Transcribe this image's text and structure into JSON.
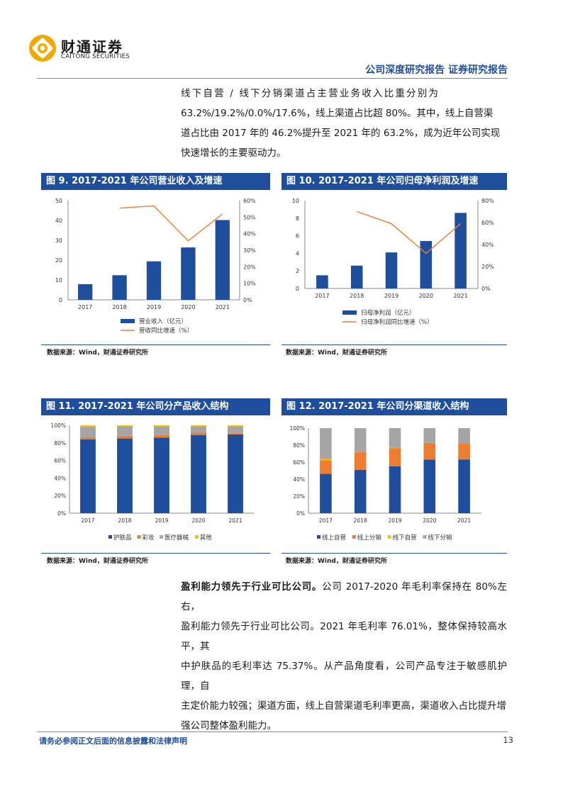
{
  "header": {
    "logo_cn": "财通证券",
    "logo_en": "CAITONG SECURITIES",
    "report_title": "公司深度研究报告 证券研究报告"
  },
  "paragraph1": {
    "lines": [
      "线下自营 / 线下分销渠道占主营业务收入比重分别为",
      "63.2%/19.2%/0.0%/17.6%，线上渠道占比超 80%。其中，线上自营渠",
      "道占比由 2017 年的 46.2%提升至 2021 年的 63.2%，成为近年公司实现",
      "快速增长的主要驱动力。"
    ]
  },
  "paragraph2": {
    "lead": "盈利能力领先于行业可比公司。",
    "first_rest": "公司 2017-2020 年毛利率保持在 80%左右，",
    "lines": [
      "盈利能力领先于行业可比公司。2021 年毛利率 76.01%，整体保持较高水平，其",
      "中护肤品的毛利率达 75.37%。从产品角度看，公司产品专注于敏感肌护理，自",
      "主定价能力较强；渠道方面，线上自营渠道毛利率更高，渠道收入占比提升增",
      "强公司整体盈利能力。"
    ]
  },
  "figures": {
    "fig9": {
      "title": "图 9. 2017-2021 年公司营业收入及增速",
      "source": "数据来源：Wind，财通证券研究所"
    },
    "fig10": {
      "title": "图 10. 2017-2021 年公司归母净利润及增速",
      "source": "数据来源：Wind，财通证券研究所"
    },
    "fig11": {
      "title": "图 11. 2017-2021 年公司分产品收入结构",
      "source": "数据来源：Wind，财通证券研究所"
    },
    "fig12": {
      "title": "图 12. 2017-2021 年公司分渠道收入结构",
      "source": "数据来源：Wind，财通证券研究所"
    }
  },
  "chart_data": [
    {
      "id": "fig9",
      "type": "bar+line",
      "categories": [
        "2017",
        "2018",
        "2019",
        "2020",
        "2021"
      ],
      "series": [
        {
          "name": "营业收入（亿元）",
          "type": "bar",
          "axis": "left",
          "values": [
            7.9,
            12.4,
            19.4,
            26.4,
            40.2
          ]
        },
        {
          "name": "营收同比增速（%）",
          "type": "line",
          "axis": "right",
          "values": [
            null,
            55.4,
            56.8,
            35.7,
            51.9
          ]
        }
      ],
      "ylim_left": [
        0,
        50
      ],
      "yticks_left": [
        "0",
        "10",
        "20",
        "30",
        "40",
        "50"
      ],
      "ylim_right": [
        0,
        60
      ],
      "yticks_right": [
        "0%",
        "10%",
        "20%",
        "30%",
        "40%",
        "50%",
        "60%"
      ],
      "grid": false,
      "legend": "bottom",
      "colors": {
        "bar": "#1f4e9c",
        "line": "#ed7d31"
      }
    },
    {
      "id": "fig10",
      "type": "bar+line",
      "categories": [
        "2017",
        "2018",
        "2019",
        "2020",
        "2021"
      ],
      "series": [
        {
          "name": "归母净利润（亿元）",
          "type": "bar",
          "axis": "left",
          "values": [
            1.5,
            2.6,
            4.1,
            5.4,
            8.6
          ]
        },
        {
          "name": "归母净利润同比增速（%）",
          "type": "line",
          "axis": "right",
          "values": [
            null,
            70.0,
            59.0,
            32.0,
            59.0
          ]
        }
      ],
      "ylim_left": [
        0,
        10
      ],
      "yticks_left": [
        "0",
        "2",
        "4",
        "6",
        "8",
        "10"
      ],
      "ylim_right": [
        0,
        80
      ],
      "yticks_right": [
        "0%",
        "20%",
        "40%",
        "60%",
        "80%"
      ],
      "grid": false,
      "legend": "bottom",
      "colors": {
        "bar": "#1f4e9c",
        "line": "#ed7d31"
      }
    },
    {
      "id": "fig11",
      "type": "stacked-bar",
      "categories": [
        "2017",
        "2018",
        "2019",
        "2020",
        "2021"
      ],
      "series": [
        {
          "name": "护肤品",
          "values": [
            84,
            85,
            86,
            89,
            89.5
          ],
          "color": "#1f4e9c"
        },
        {
          "name": "彩妆",
          "values": [
            2.5,
            3,
            3,
            2.5,
            1.5
          ],
          "color": "#ed7d31"
        },
        {
          "name": "医疗器械",
          "values": [
            12,
            11,
            10,
            7.5,
            8
          ],
          "color": "#a5a5a5"
        },
        {
          "name": "其他",
          "values": [
            1.5,
            1,
            1,
            1,
            1
          ],
          "color": "#ffc000"
        }
      ],
      "ylim": [
        0,
        100
      ],
      "yticks": [
        "0%",
        "20%",
        "40%",
        "60%",
        "80%",
        "100%"
      ],
      "legend": "bottom"
    },
    {
      "id": "fig12",
      "type": "stacked-bar",
      "categories": [
        "2017",
        "2018",
        "2019",
        "2020",
        "2021"
      ],
      "series": [
        {
          "name": "线上自营",
          "values": [
            46.2,
            51,
            55,
            63,
            63.2
          ],
          "color": "#1f4e9c"
        },
        {
          "name": "线上分销",
          "values": [
            16,
            21,
            21.5,
            19.5,
            19.2
          ],
          "color": "#ed7d31"
        },
        {
          "name": "线下自营",
          "values": [
            1.3,
            0.5,
            0.3,
            0.1,
            0
          ],
          "color": "#ffc000"
        },
        {
          "name": "线下分销",
          "values": [
            36.5,
            27.5,
            23.2,
            17.4,
            17.6
          ],
          "color": "#a5a5a5"
        }
      ],
      "ylim": [
        0,
        100
      ],
      "yticks": [
        "0%",
        "20%",
        "40%",
        "60%",
        "80%",
        "100%"
      ],
      "legend": "bottom"
    }
  ],
  "footer": {
    "note": "请务必参阅正文后面的信息披露和法律声明",
    "page_number": "13"
  }
}
